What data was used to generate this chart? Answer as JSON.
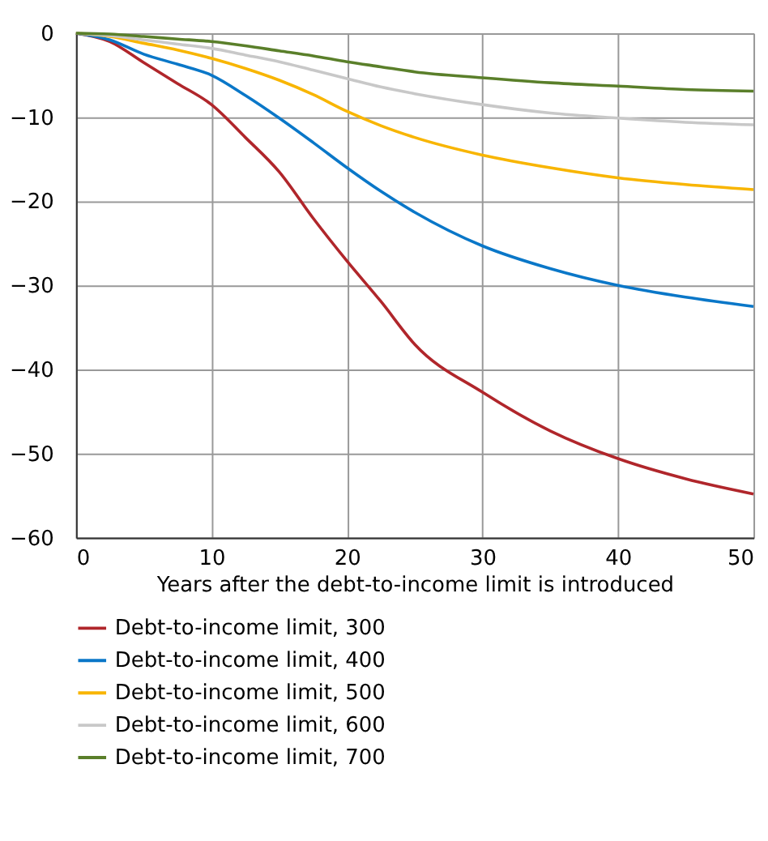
{
  "chart_data": {
    "type": "line",
    "xlabel": "Years after the debt-to-income limit is introduced",
    "x": [
      0,
      2.5,
      5,
      7.5,
      10,
      12.5,
      15,
      17.5,
      20,
      22.5,
      25,
      30,
      35,
      40,
      45,
      50
    ],
    "series": [
      {
        "name": "Debt-to-income limit, 300",
        "color": "#b0262b",
        "values": [
          0,
          -1,
          -3.5,
          -6,
          -8.5,
          -12.4,
          -16.5,
          -22,
          -27.1,
          -31.9,
          -37,
          -42.7,
          -47.3,
          -50.6,
          -53,
          -54.8
        ]
      },
      {
        "name": "Debt-to-income limit, 400",
        "color": "#0a77c8",
        "values": [
          0,
          -0.8,
          -2.5,
          -3.7,
          -5,
          -7.4,
          -10.1,
          -13,
          -16,
          -18.8,
          -21.3,
          -25.3,
          -28,
          -30,
          -31.4,
          -32.5
        ]
      },
      {
        "name": "Debt-to-income limit, 500",
        "color": "#f8b500",
        "values": [
          0,
          -0.4,
          -1.2,
          -2,
          -3,
          -4.2,
          -5.6,
          -7.3,
          -9.3,
          -11,
          -12.4,
          -14.5,
          -16,
          -17.2,
          -18,
          -18.6
        ]
      },
      {
        "name": "Debt-to-income limit, 600",
        "color": "#c8c8c8",
        "values": [
          0,
          -0.3,
          -0.8,
          -1.3,
          -1.8,
          -2.6,
          -3.4,
          -4.4,
          -5.4,
          -6.4,
          -7.2,
          -8.5,
          -9.5,
          -10.1,
          -10.6,
          -10.9
        ]
      },
      {
        "name": "Debt-to-income limit, 700",
        "color": "#5a7f2a",
        "values": [
          0,
          -0.1,
          -0.4,
          -0.7,
          -1,
          -1.5,
          -2.1,
          -2.7,
          -3.4,
          -4,
          -4.6,
          -5.3,
          -5.9,
          -6.3,
          -6.7,
          -6.9
        ]
      }
    ],
    "xlim": [
      0,
      50
    ],
    "xticks": [
      0,
      10,
      20,
      30,
      40,
      50
    ],
    "ylim": [
      -60,
      0
    ],
    "yticks": [
      -60,
      -50,
      -40,
      -30,
      -20,
      -10,
      0
    ],
    "grid": true,
    "legend": "bottom",
    "line_style": "solid"
  }
}
